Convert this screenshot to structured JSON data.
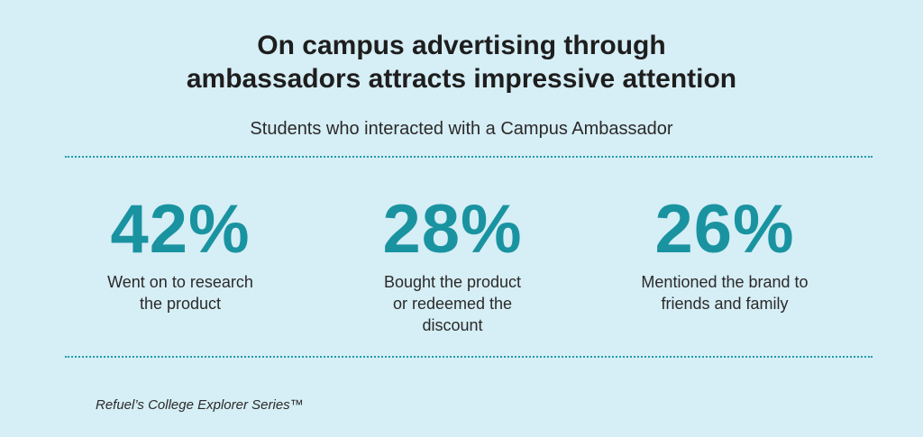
{
  "header": {
    "title_lines": [
      "On campus advertising through",
      "ambassadors attracts impressive attention"
    ],
    "subtitle": "Students who interacted with a Campus Ambassador"
  },
  "chart_data": {
    "type": "table",
    "title": "On campus advertising through ambassadors attracts impressive attention",
    "subtitle": "Students who interacted with a Campus Ambassador",
    "stats": [
      {
        "value": "42%",
        "percent": 42,
        "label_lines": [
          "Went on to research",
          "the product"
        ]
      },
      {
        "value": "28%",
        "percent": 28,
        "label_lines": [
          "Bought the product",
          "or redeemed the",
          "discount"
        ]
      },
      {
        "value": "26%",
        "percent": 26,
        "label_lines": [
          "Mentioned the brand to",
          "friends and family"
        ]
      }
    ]
  },
  "footer": {
    "source": "Refuel’s College Explorer Series™"
  },
  "colors": {
    "background": "#d6eef5",
    "accent": "#1a93a1",
    "divider": "#1f9ba8",
    "text": "#222222"
  }
}
